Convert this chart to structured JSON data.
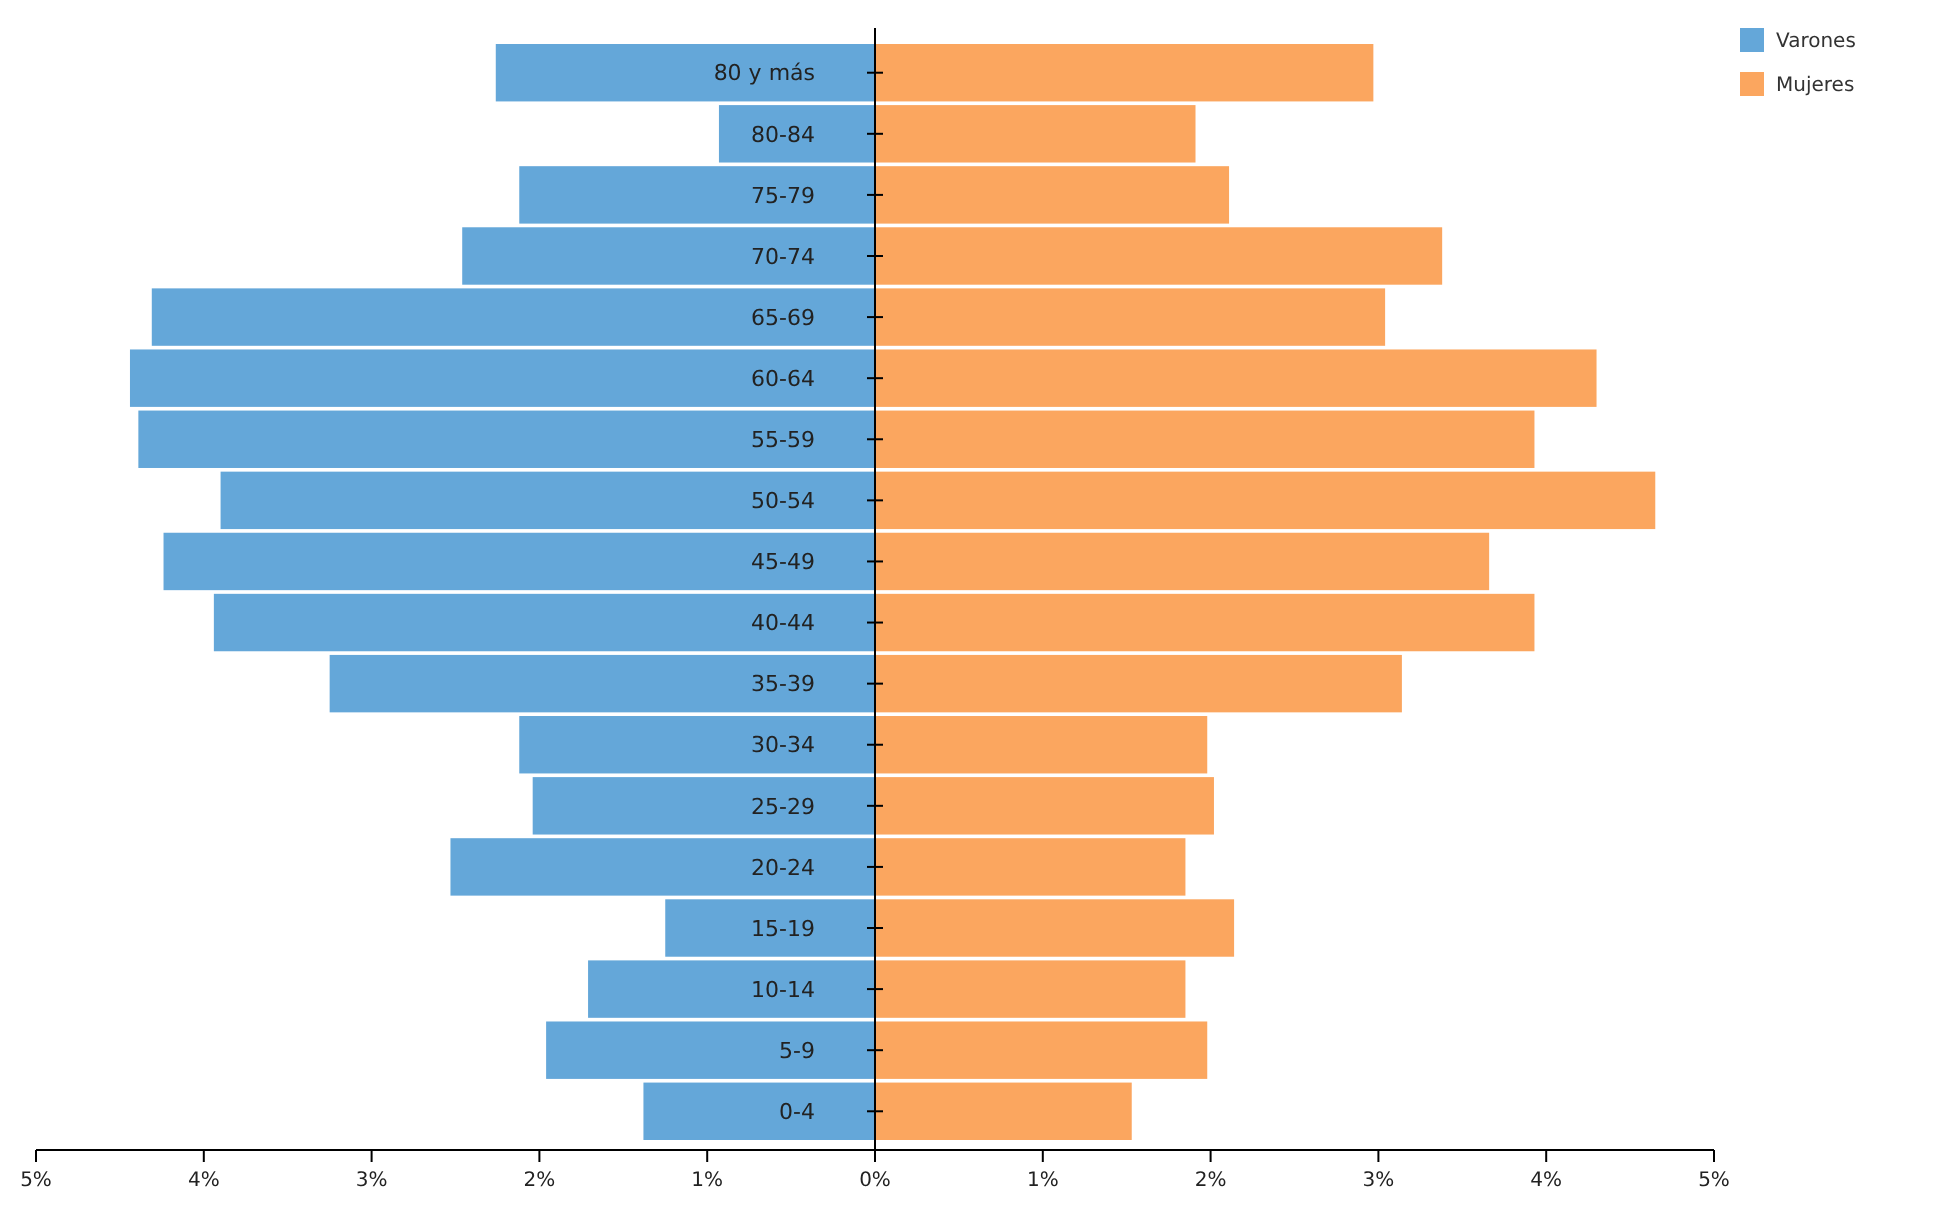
{
  "chart_data": {
    "type": "bar",
    "orientation": "horizontal",
    "stacked": true,
    "categories": [
      "80 y más",
      "80-84",
      "75-79",
      "70-74",
      "65-69",
      "60-64",
      "55-59",
      "50-54",
      "45-49",
      "40-44",
      "35-39",
      "30-34",
      "25-29",
      "20-24",
      "15-19",
      "10-14",
      "5-9",
      "0-4"
    ],
    "series": [
      {
        "name": "Varones",
        "color": "#64a7d9",
        "values": [
          -2.26,
          -0.93,
          -2.12,
          -2.46,
          -4.31,
          -4.44,
          -4.39,
          -3.9,
          -4.24,
          -3.94,
          -3.25,
          -2.12,
          -2.04,
          -2.53,
          -1.25,
          -1.71,
          -1.96,
          -1.38
        ]
      },
      {
        "name": "Mujeres",
        "color": "#fba65f",
        "values": [
          2.97,
          1.91,
          2.11,
          3.38,
          3.04,
          4.3,
          3.93,
          4.65,
          3.66,
          3.93,
          3.14,
          1.98,
          2.02,
          1.85,
          2.14,
          1.85,
          1.98,
          1.53
        ]
      }
    ],
    "xlim": [
      -5,
      5
    ],
    "xticks": [
      {
        "value": -5,
        "label": "5%"
      },
      {
        "value": -4,
        "label": "4%"
      },
      {
        "value": -3,
        "label": "3%"
      },
      {
        "value": -2,
        "label": "2%"
      },
      {
        "value": -1,
        "label": "1%"
      },
      {
        "value": 0,
        "label": "0%"
      },
      {
        "value": 1,
        "label": "1%"
      },
      {
        "value": 2,
        "label": "2%"
      },
      {
        "value": 3,
        "label": "3%"
      },
      {
        "value": 4,
        "label": "4%"
      },
      {
        "value": 5,
        "label": "5%"
      }
    ],
    "legend": "top right"
  }
}
